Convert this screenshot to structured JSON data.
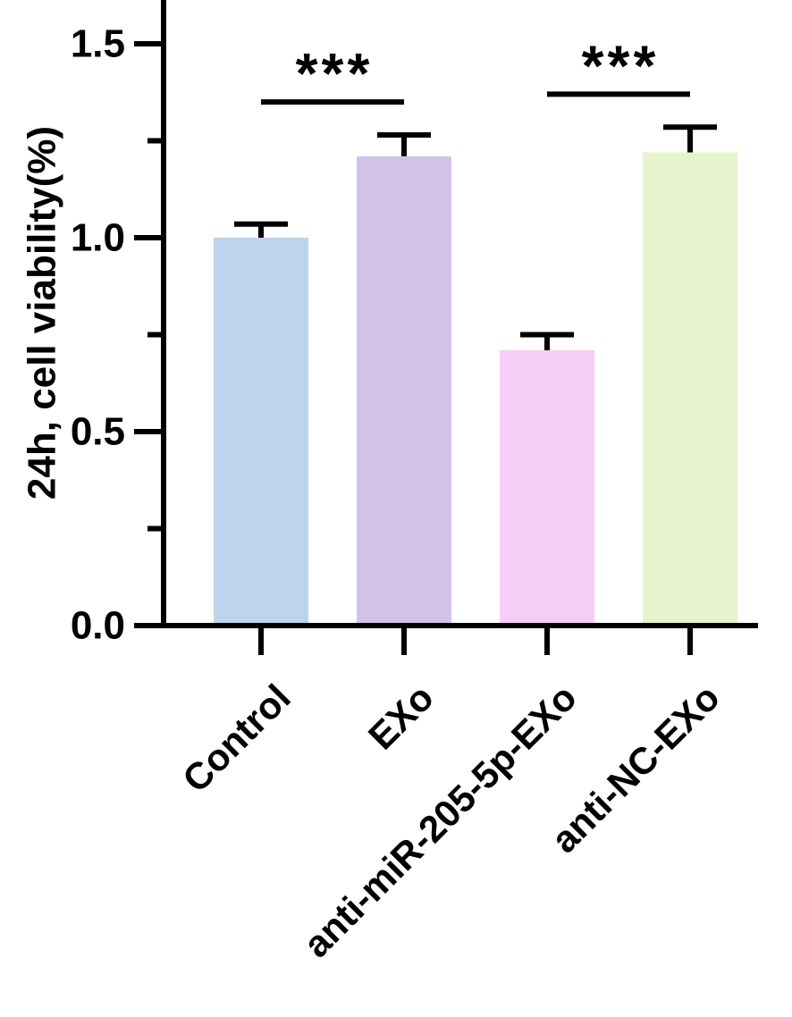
{
  "chart_data": {
    "type": "bar",
    "title": "",
    "xlabel": "",
    "ylabel": "24h, cell viability(%)",
    "ylim": [
      0,
      1.6
    ],
    "yticks": [
      {
        "value": 0.0,
        "label": "0.0"
      },
      {
        "value": 0.5,
        "label": "0.5"
      },
      {
        "value": 1.0,
        "label": "1.0"
      },
      {
        "value": 1.5,
        "label": "1.5"
      }
    ],
    "categories": [
      "Control",
      "EXo",
      "anti-miR-205-5p-EXo",
      "anti-NC-EXo"
    ],
    "values": [
      1.0,
      1.21,
      0.71,
      1.22
    ],
    "errors": [
      0.035,
      0.055,
      0.04,
      0.065
    ],
    "colors": [
      "#c0d3ed",
      "#d1c2ea",
      "#f6cdf6",
      "#e6f3cd"
    ],
    "grid": false,
    "legend": "none",
    "significance": [
      {
        "from": 0,
        "to": 1,
        "label": "***",
        "y": 1.35
      },
      {
        "from": 2,
        "to": 3,
        "label": "***",
        "y": 1.37
      }
    ]
  }
}
